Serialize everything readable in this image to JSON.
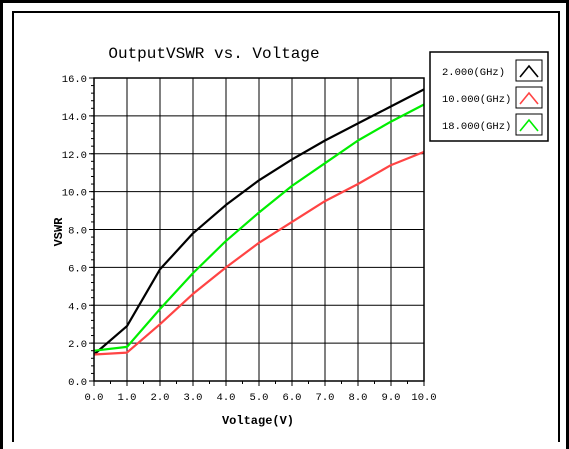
{
  "chart_data": {
    "type": "line",
    "title": "OutputVSWR vs. Voltage",
    "xlabel": "Voltage(V)",
    "ylabel": "VSWR",
    "xlim": [
      0,
      10
    ],
    "ylim": [
      0,
      16
    ],
    "x_ticks": [
      "0.0",
      "1.0",
      "2.0",
      "3.0",
      "4.0",
      "5.0",
      "6.0",
      "7.0",
      "8.0",
      "9.0",
      "10.0"
    ],
    "y_ticks": [
      "0.0",
      "2.0",
      "4.0",
      "6.0",
      "8.0",
      "10.0",
      "12.0",
      "14.0",
      "16.0"
    ],
    "grid": true,
    "legend_position": "top-right outside",
    "series": [
      {
        "name": "2.000(GHz)",
        "color": "#000000",
        "x": [
          0,
          1,
          2,
          3,
          4,
          5,
          6,
          7,
          8,
          9,
          10
        ],
        "values": [
          1.4,
          2.9,
          5.9,
          7.8,
          9.3,
          10.6,
          11.7,
          12.7,
          13.6,
          14.5,
          15.4
        ]
      },
      {
        "name": "10.000(GHz)",
        "color": "#ff4444",
        "x": [
          0,
          1,
          2,
          3,
          4,
          5,
          6,
          7,
          8,
          9,
          10
        ],
        "values": [
          1.4,
          1.5,
          3.0,
          4.6,
          6.0,
          7.3,
          8.4,
          9.5,
          10.4,
          11.4,
          12.1
        ]
      },
      {
        "name": "18.000(GHz)",
        "color": "#00ee00",
        "x": [
          0,
          1,
          2,
          3,
          4,
          5,
          6,
          7,
          8,
          9,
          10
        ],
        "values": [
          1.6,
          1.8,
          3.8,
          5.7,
          7.4,
          8.9,
          10.3,
          11.5,
          12.7,
          13.7,
          14.6
        ]
      }
    ]
  }
}
